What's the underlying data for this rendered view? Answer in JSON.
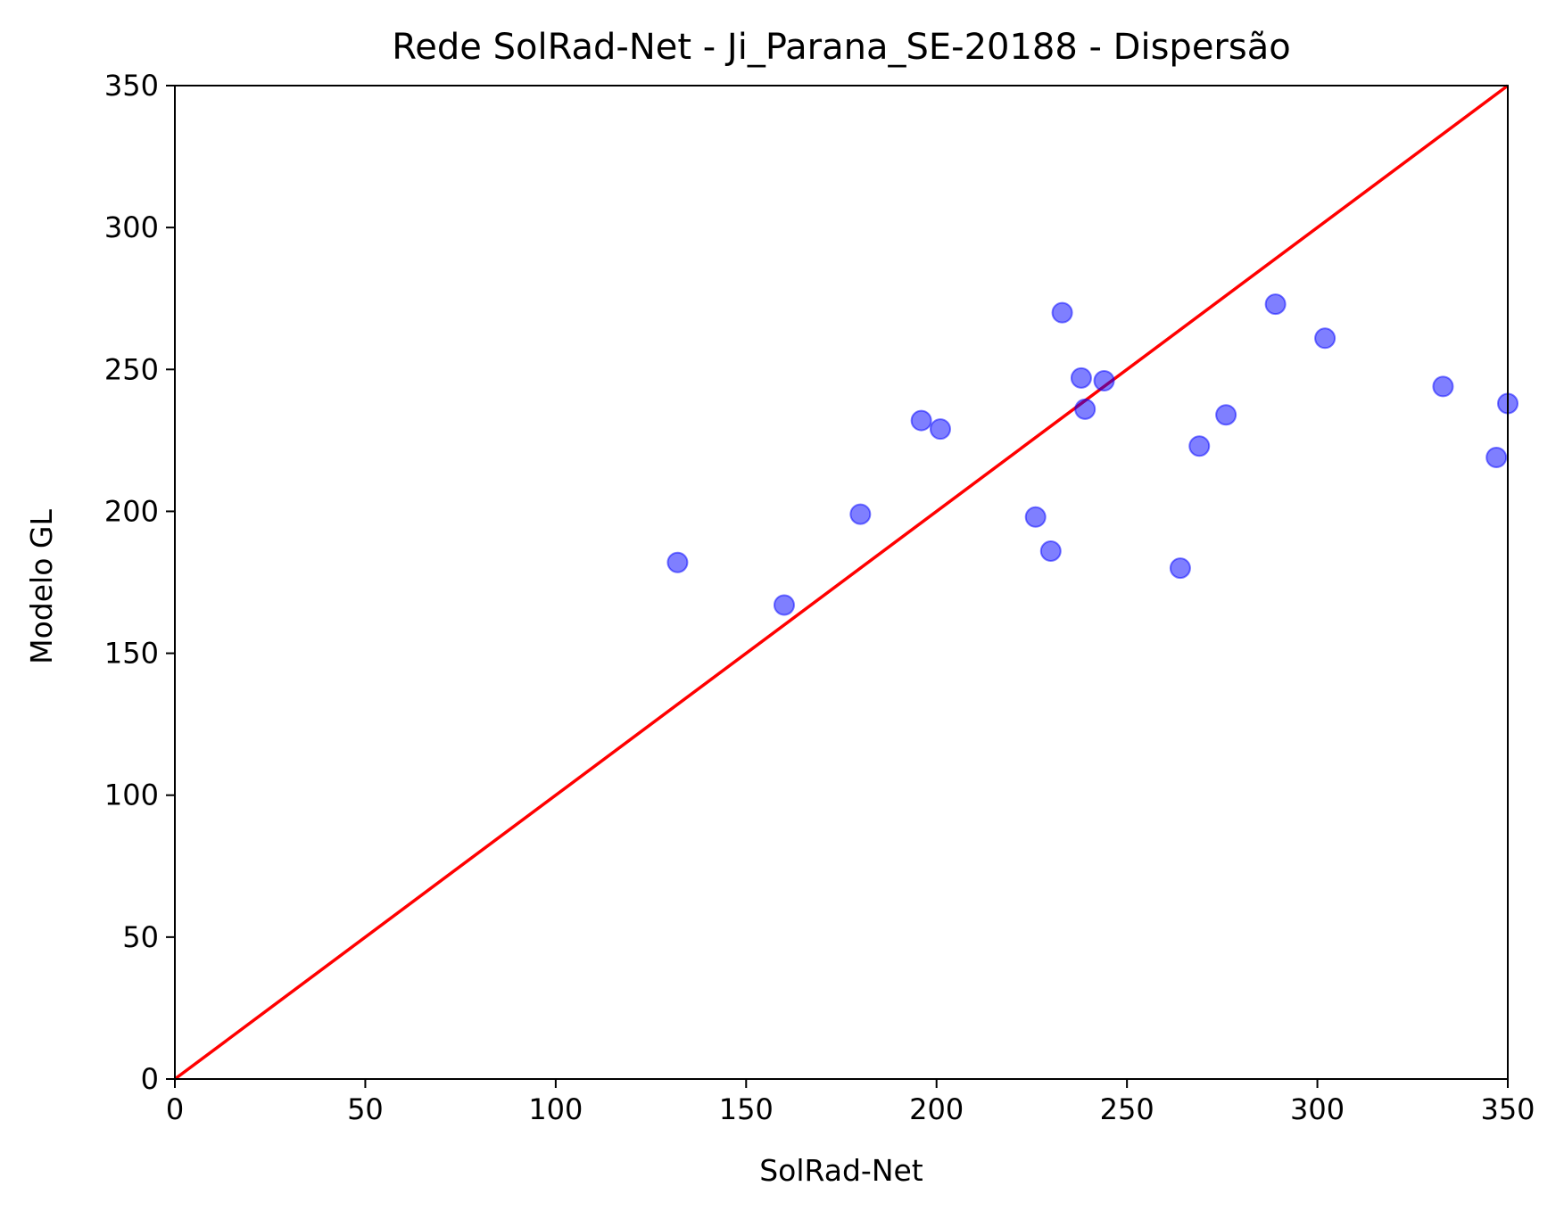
{
  "chart_data": {
    "type": "scatter",
    "title": "Rede SolRad-Net - Ji_Parana_SE-20188 - Dispersão",
    "xlabel": "SolRad-Net",
    "ylabel": "Modelo GL",
    "xlim": [
      0,
      350
    ],
    "ylim": [
      0,
      350
    ],
    "xticks": [
      "0",
      "50",
      "100",
      "150",
      "200",
      "250",
      "300",
      "350"
    ],
    "yticks": [
      "0",
      "50",
      "100",
      "150",
      "200",
      "250",
      "300",
      "350"
    ],
    "grid": false,
    "series": [
      {
        "color": "#0000ff",
        "alpha": 0.5,
        "points": [
          [
            132,
            182
          ],
          [
            160,
            167
          ],
          [
            180,
            199
          ],
          [
            196,
            232
          ],
          [
            201,
            229
          ],
          [
            226,
            198
          ],
          [
            230,
            186
          ],
          [
            233,
            270
          ],
          [
            238,
            247
          ],
          [
            239,
            236
          ],
          [
            244,
            246
          ],
          [
            264,
            180
          ],
          [
            269,
            223
          ],
          [
            276,
            234
          ],
          [
            289,
            273
          ],
          [
            302,
            261
          ],
          [
            333,
            244
          ],
          [
            347,
            219
          ],
          [
            350,
            238
          ]
        ]
      }
    ],
    "reference_line": {
      "color": "#ff0000",
      "from": [
        0,
        0
      ],
      "to": [
        350,
        350
      ]
    }
  }
}
